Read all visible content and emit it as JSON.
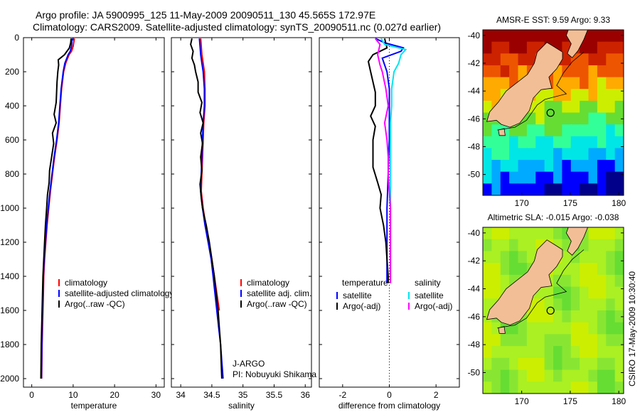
{
  "title": {
    "line1": "Argo profile: JA 5900995_125 11-May-2009 20090511_130 45.565S 172.97E",
    "line2": "Climatology: CARS2009. Satellite-adjusted climatology: synTS_20090511.nc (0.027d earlier)"
  },
  "credit": "CSIRO 17-May-2009 10:30:40",
  "colors": {
    "red": "#ff0000",
    "blue": "#0000ff",
    "black": "#000000",
    "cyan": "#00e5ee",
    "magenta": "#ff00ff",
    "land": "#f2be96"
  },
  "y_axis": {
    "range": [
      0,
      2050
    ],
    "ticks": [
      0,
      200,
      400,
      600,
      800,
      1000,
      1200,
      1400,
      1600,
      1800,
      2000
    ],
    "tick_labels": [
      "0",
      "200",
      "400",
      "600",
      "800",
      "1000",
      "1200",
      "1400",
      "1600",
      "1800",
      "2000"
    ]
  },
  "chart_data": [
    {
      "id": "temperature",
      "type": "line",
      "xlabel": "temperature",
      "xlim": [
        -2,
        32
      ],
      "xticks": [
        0,
        10,
        20,
        30
      ],
      "xtick_labels": [
        "0",
        "10",
        "20",
        "30"
      ],
      "ylim": [
        0,
        2050
      ],
      "y_reversed": true,
      "legend": {
        "position": "lower-right",
        "entries": [
          "climatology",
          "satellite-adjusted climatology",
          "Argo(..raw -QC)"
        ]
      },
      "series": [
        {
          "name": "climatology",
          "color": "red",
          "depth": [
            5,
            20,
            50,
            80,
            100,
            150,
            200,
            300,
            400,
            500,
            600,
            700,
            800,
            900,
            1000,
            1100,
            1200,
            1300,
            1400,
            1500,
            1600,
            1700,
            1800,
            1900,
            2000
          ],
          "values": [
            10.3,
            10.2,
            10.0,
            9.6,
            9.0,
            8.2,
            7.7,
            7.2,
            6.9,
            6.6,
            6.1,
            5.5,
            5.0,
            4.5,
            4.1,
            3.7,
            3.4,
            3.1,
            2.9,
            2.8,
            2.7,
            2.6,
            2.5,
            2.45,
            2.4
          ]
        },
        {
          "name": "satellite-adjusted climatology",
          "color": "blue",
          "depth": [
            5,
            20,
            50,
            80,
            100,
            150,
            200,
            300,
            400,
            500,
            600,
            700,
            800,
            900,
            1000,
            1100,
            1200,
            1300,
            1400,
            1500,
            1600,
            1700,
            1800,
            1900,
            2000
          ],
          "values": [
            9.8,
            9.7,
            9.6,
            9.3,
            8.8,
            8.0,
            7.6,
            7.1,
            6.8,
            6.5,
            6.0,
            5.4,
            4.9,
            4.4,
            4.0,
            3.6,
            3.3,
            3.0,
            2.8,
            2.7,
            2.6,
            2.5,
            2.45,
            2.4,
            2.35
          ]
        },
        {
          "name": "Argo(..raw -QC)",
          "color": "black",
          "depth": [
            5,
            30,
            60,
            100,
            130,
            160,
            200,
            260,
            320,
            380,
            450,
            500,
            560,
            620,
            700,
            780,
            850,
            920,
            1000,
            1100,
            1200,
            1400,
            1600,
            1800,
            2000
          ],
          "values": [
            9.5,
            9.4,
            9.1,
            7.9,
            6.4,
            6.5,
            6.3,
            6.1,
            6.0,
            5.9,
            5.4,
            5.9,
            5.0,
            5.3,
            4.8,
            4.3,
            4.2,
            3.8,
            3.6,
            3.3,
            3.1,
            2.7,
            2.5,
            2.3,
            2.2
          ]
        }
      ]
    },
    {
      "id": "salinity",
      "type": "line",
      "xlabel": "salinity",
      "xlim": [
        33.85,
        36.1
      ],
      "xticks": [
        34,
        34.5,
        35,
        35.5,
        36
      ],
      "xtick_labels": [
        "34",
        "34.5",
        "35",
        "35.5",
        "36"
      ],
      "ylim": [
        0,
        2050
      ],
      "y_reversed": true,
      "legend": {
        "position": "lower-right",
        "entries": [
          "climatology",
          "satellite adj. clim.",
          "Argo(..raw -QC)"
        ]
      },
      "annotation": {
        "line1": "J-ARGO",
        "line2": "PI: Nobuyuki Shikama"
      },
      "series": [
        {
          "name": "climatology",
          "color": "red",
          "depth": [
            5,
            50,
            100,
            150,
            200,
            300,
            400,
            500,
            600,
            700,
            800,
            900,
            1000,
            1100,
            1200,
            1300,
            1400,
            1500,
            1600
          ],
          "values": [
            34.32,
            34.33,
            34.34,
            34.36,
            34.38,
            34.39,
            34.39,
            34.37,
            34.36,
            34.35,
            34.34,
            34.33,
            34.36,
            34.4,
            34.45,
            34.5,
            34.54,
            34.58,
            34.62
          ]
        },
        {
          "name": "satellite adj. clim.",
          "color": "blue",
          "depth": [
            5,
            50,
            100,
            150,
            200,
            300,
            400,
            500,
            600,
            700,
            800,
            900,
            1000,
            1100,
            1200,
            1300,
            1400,
            1500,
            1600,
            1700,
            1800,
            1900,
            2000
          ],
          "values": [
            34.3,
            34.31,
            34.32,
            34.34,
            34.36,
            34.38,
            34.38,
            34.36,
            34.35,
            34.34,
            34.33,
            34.32,
            34.35,
            34.39,
            34.44,
            34.49,
            34.52,
            34.55,
            34.58,
            34.61,
            34.64,
            34.66,
            34.68
          ]
        },
        {
          "name": "Argo(..raw -QC)",
          "color": "black",
          "depth": [
            5,
            40,
            80,
            120,
            160,
            200,
            260,
            320,
            380,
            440,
            500,
            560,
            620,
            700,
            780,
            860,
            940,
            1000,
            1100,
            1200,
            1300,
            1400,
            1500,
            1600,
            1700,
            1800,
            1900,
            2000
          ],
          "values": [
            34.18,
            34.16,
            34.2,
            34.18,
            34.22,
            34.24,
            34.28,
            34.28,
            34.34,
            34.31,
            34.36,
            34.32,
            34.35,
            34.32,
            34.34,
            34.31,
            34.33,
            34.35,
            34.41,
            34.46,
            34.5,
            34.54,
            34.57,
            34.6,
            34.62,
            34.64,
            34.65,
            34.66
          ]
        }
      ]
    },
    {
      "id": "difference",
      "type": "line",
      "xlabel": "difference from climatology",
      "xlim": [
        -3,
        3
      ],
      "xticks": [
        -2,
        0,
        2
      ],
      "xtick_labels": [
        "-2",
        "0",
        "2"
      ],
      "ylim": [
        0,
        2050
      ],
      "y_reversed": true,
      "legend": {
        "position": "lower-right",
        "col1_title": "temperature",
        "col2_title": "salinity",
        "entries": [
          "satellite",
          "Argo(-adj)",
          "satellite",
          "Argo(-adj)"
        ]
      },
      "series": [
        {
          "name": "temperature satellite",
          "color": "blue",
          "depth": [
            5,
            30,
            60,
            80,
            120,
            200,
            300,
            400,
            600,
            800,
            1000,
            1200,
            1400,
            1440
          ],
          "values": [
            -0.6,
            -0.2,
            0.6,
            0.5,
            -0.3,
            -0.1,
            0.0,
            0.0,
            0.0,
            -0.05,
            -0.1,
            -0.1,
            -0.1,
            -0.1
          ]
        },
        {
          "name": "temperature Argo(-adj)",
          "color": "black",
          "depth": [
            5,
            60,
            100,
            140,
            200,
            260,
            320,
            400,
            460,
            520,
            600,
            680,
            760,
            850,
            920,
            1000,
            1100,
            1200,
            1300,
            1400,
            1440
          ],
          "values": [
            -0.2,
            -0.1,
            -0.7,
            -0.9,
            -0.8,
            -0.7,
            -0.6,
            -0.6,
            -0.8,
            -0.6,
            -0.7,
            -0.7,
            -0.7,
            -0.5,
            -0.35,
            -0.4,
            -0.25,
            -0.15,
            -0.1,
            -0.05,
            -0.05
          ]
        },
        {
          "name": "salinity satellite",
          "color": "cyan",
          "depth": [
            5,
            40,
            70,
            100,
            150,
            200,
            300,
            400,
            500,
            600,
            800,
            1000,
            1200,
            1400,
            1440
          ],
          "values": [
            -0.35,
            -0.2,
            0.7,
            0.5,
            0.4,
            0.2,
            0.1,
            0.1,
            0.05,
            0.05,
            0.05,
            0.05,
            0.05,
            0.05,
            0.05
          ]
        },
        {
          "name": "salinity Argo(-adj)",
          "color": "magenta",
          "depth": [
            5,
            40,
            100,
            160,
            200,
            300,
            400,
            500,
            600,
            700,
            800,
            900,
            1000,
            1100,
            1200,
            1300,
            1400,
            1440
          ],
          "values": [
            -0.6,
            -0.4,
            -0.5,
            -0.4,
            -0.3,
            -0.15,
            -0.05,
            -0.2,
            -0.1,
            -0.05,
            -0.05,
            0.0,
            0.05,
            0.05,
            0.05,
            0.05,
            0.05,
            0.05
          ]
        }
      ]
    },
    {
      "id": "sst_map",
      "type": "heatmap",
      "title": "AMSR-E SST: 9.59  Argo: 9.33",
      "xlim": [
        166,
        180.5
      ],
      "ylim": [
        -51.5,
        -39.6
      ],
      "xticks": [
        170,
        175,
        180
      ],
      "xtick_labels": [
        "170",
        "175",
        "180"
      ],
      "yticks": [
        -40,
        -42,
        -44,
        -46,
        -48,
        -50
      ],
      "ytick_labels": [
        "-40",
        "-42",
        "-44",
        "-46",
        "-48",
        "-50"
      ],
      "float_position": {
        "lon": 172.97,
        "lat": -45.565
      },
      "colorscale": [
        "#00008b",
        "#0000ff",
        "#00aaff",
        "#00e6e6",
        "#33ff99",
        "#66dd33",
        "#ccee00",
        "#ffaa00",
        "#ee5500",
        "#cc2200",
        "#9b0000"
      ]
    },
    {
      "id": "sla_map",
      "type": "heatmap",
      "title": "Altimetric SLA: -0.015  Argo: -0.038",
      "xlim": [
        166,
        180.5
      ],
      "ylim": [
        -51.5,
        -39.6
      ],
      "xticks": [
        170,
        175,
        180
      ],
      "xtick_labels": [
        "170",
        "175",
        "180"
      ],
      "yticks": [
        -40,
        -42,
        -44,
        -46,
        -48,
        -50
      ],
      "ytick_labels": [
        "-40",
        "-42",
        "-44",
        "-46",
        "-48",
        "-50"
      ],
      "float_position": {
        "lon": 172.97,
        "lat": -45.565
      },
      "colorscale": [
        "#66dd33",
        "#88e633",
        "#aaf022",
        "#ccee00",
        "#ddee33"
      ]
    }
  ]
}
